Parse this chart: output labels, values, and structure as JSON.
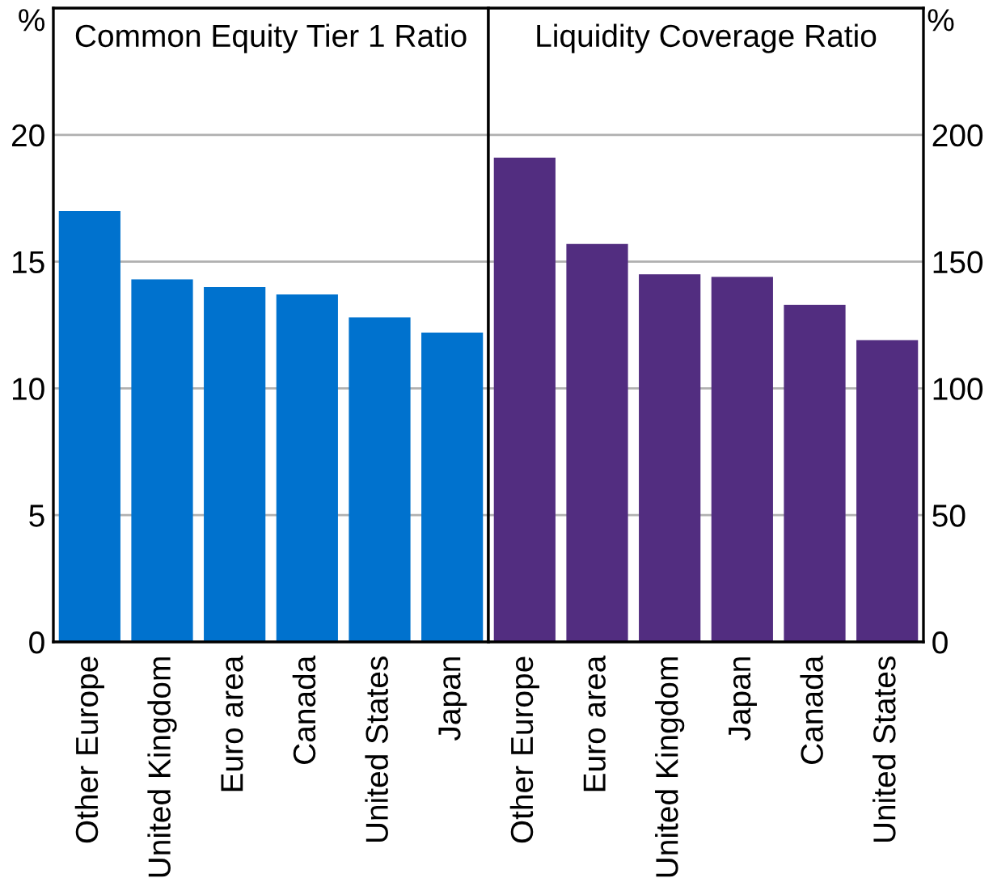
{
  "chart_data": [
    {
      "type": "bar",
      "title": "Common Equity Tier 1 Ratio",
      "ylabel": "%",
      "categories": [
        "Other Europe",
        "United Kingdom",
        "Euro area",
        "Canada",
        "United States",
        "Japan"
      ],
      "values": [
        17.0,
        14.3,
        14.0,
        13.7,
        12.8,
        12.2
      ],
      "color": "#0072ce",
      "ylim": [
        0,
        25
      ],
      "yticks": [
        0,
        5,
        10,
        15,
        20
      ],
      "grid": "y"
    },
    {
      "type": "bar",
      "title": "Liquidity Coverage Ratio",
      "ylabel": "%",
      "categories": [
        "Other Europe",
        "Euro area",
        "United Kingdom",
        "Japan",
        "Canada",
        "United States"
      ],
      "values": [
        191,
        157,
        145,
        144,
        133,
        119
      ],
      "color": "#522d80",
      "ylim": [
        0,
        250
      ],
      "yticks": [
        0,
        50,
        100,
        150,
        200
      ],
      "grid": "y"
    }
  ]
}
